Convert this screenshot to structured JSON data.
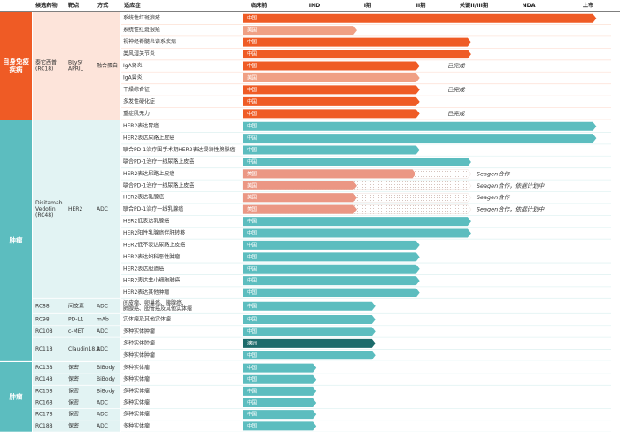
{
  "header": {
    "columns": [
      "候选药物",
      "靶点",
      "方式",
      "适应症"
    ],
    "stages": [
      "临床前",
      "IND",
      "I期",
      "II期",
      "关键II/III期",
      "NDA",
      "上市"
    ]
  },
  "sections": [
    {
      "label": [
        "自身免疫",
        "疾病"
      ],
      "color": "#ef5b25",
      "tint": "#fde4da",
      "groups": [
        {
          "drug": [
            "泰它西普",
            "(RC18)"
          ],
          "target": [
            "BLyS/",
            "APRIL"
          ],
          "modality": "融合蛋白",
          "rows": [
            {
              "indication": "系统性红斑狼疮",
              "region": "中国",
              "color": "#ef5b25",
              "progress": 96
            },
            {
              "indication": "系统性红斑狼疮",
              "region": "美国",
              "color": "#f0a084",
              "progress": 31
            },
            {
              "indication": "视神经脊髓炎谱系疾病",
              "region": "中国",
              "color": "#ef5b25",
              "progress": 62
            },
            {
              "indication": "类风湿关节炎",
              "region": "中国",
              "color": "#ef5b25",
              "progress": 62
            },
            {
              "indication": "IgA肾炎",
              "region": "中国",
              "color": "#ef5b25",
              "progress": 48,
              "note": "已完成"
            },
            {
              "indication": "IgA肾炎",
              "region": "美国",
              "color": "#f0a084",
              "progress": 48
            },
            {
              "indication": "干燥综合征",
              "region": "中国",
              "color": "#ef5b25",
              "progress": 48,
              "note": "已完成"
            },
            {
              "indication": "多发性硬化症",
              "region": "中国",
              "color": "#ef5b25",
              "progress": 48
            },
            {
              "indication": "重症肌无力",
              "region": "中国",
              "color": "#ef5b25",
              "progress": 48,
              "note": "已完成"
            }
          ]
        }
      ]
    },
    {
      "label": [
        "肿瘤"
      ],
      "color": "#5cbdbf",
      "tint": "#e2f3f3",
      "groups": [
        {
          "drug": [
            "Disitamab",
            "Vedotin",
            "(RC48)"
          ],
          "target": [
            "HER2"
          ],
          "modality": "ADC",
          "rows": [
            {
              "indication": "HER2表达胃癌",
              "region": "中国",
              "color": "#5cbdbf",
              "progress": 96
            },
            {
              "indication": "HER2表达尿路上皮癌",
              "region": "中国",
              "color": "#5cbdbf",
              "progress": 96
            },
            {
              "indication": "联合PD-1治疗围手术期HER2表达浸润性膀胱癌",
              "region": "中国",
              "color": "#5cbdbf",
              "progress": 48
            },
            {
              "indication": "联合PD-1治疗一线尿路上皮癌",
              "region": "中国",
              "color": "#5cbdbf",
              "progress": 62
            },
            {
              "indication": "HER2表达尿路上皮癌",
              "region": "美国",
              "color": "#eb9784",
              "progress": 47,
              "planned": 62,
              "note": "Seagen合作"
            },
            {
              "indication": "联合PD-1治疗一线尿路上皮癌",
              "region": "美国",
              "color": "#eb9784",
              "progress": 31,
              "planned": 62,
              "note": "Seagen合作，依据计划中"
            },
            {
              "indication": "HER2表达乳腺癌",
              "region": "美国",
              "color": "#eb9784",
              "progress": 31,
              "planned": 62,
              "note": "Seagen合作"
            },
            {
              "indication": "联合PD-1治疗一线乳腺癌",
              "region": "美国",
              "color": "#eb9784",
              "progress": 31,
              "planned": 62,
              "note": "Seagen合作，依据计划中"
            },
            {
              "indication": "HER2低表达乳腺癌",
              "region": "中国",
              "color": "#5cbdbf",
              "progress": 62
            },
            {
              "indication": "HER2阳性乳腺癌伴肝转移",
              "region": "中国",
              "color": "#5cbdbf",
              "progress": 62
            },
            {
              "indication": "HER2低不表达尿路上皮癌",
              "region": "中国",
              "color": "#5cbdbf",
              "progress": 48
            },
            {
              "indication": "HER2表达妇科恶性肿瘤",
              "region": "中国",
              "color": "#5cbdbf",
              "progress": 48
            },
            {
              "indication": "HER2表达胆道癌",
              "region": "中国",
              "color": "#5cbdbf",
              "progress": 48
            },
            {
              "indication": "HER2表达非小细胞肺癌",
              "region": "中国",
              "color": "#5cbdbf",
              "progress": 48
            },
            {
              "indication": "HER2表达其他肿瘤",
              "region": "中国",
              "color": "#5cbdbf",
              "progress": 48
            }
          ]
        },
        {
          "drug": [
            "RC88"
          ],
          "target": [
            "间皮素"
          ],
          "modality": "ADC",
          "rows": [
            {
              "indication": [
                "间皮瘤、卵巢癌、胰腺癌、",
                "肺腺癌、胆管癌及其他实体瘤"
              ],
              "region": "中国",
              "color": "#5cbdbf",
              "progress": 36
            }
          ]
        },
        {
          "drug": [
            "RC98"
          ],
          "target": [
            "PD-L1"
          ],
          "modality": "mAb",
          "rows": [
            {
              "indication": "实体瘤及其他实体瘤",
              "region": "中国",
              "color": "#5cbdbf",
              "progress": 36
            }
          ]
        },
        {
          "drug": [
            "RC108"
          ],
          "target": [
            "c-MET"
          ],
          "modality": "ADC",
          "rows": [
            {
              "indication": "多种实体肿瘤",
              "region": "中国",
              "color": "#5cbdbf",
              "progress": 36
            }
          ]
        },
        {
          "drug": [
            "RC118"
          ],
          "target": [
            "Claudin18.2"
          ],
          "modality": "ADC",
          "rows": [
            {
              "indication": "多种实体肿瘤",
              "region": "澳洲",
              "color": "#1b6b6b",
              "progress": 36
            },
            {
              "indication": "多种实体肿瘤",
              "region": "中国",
              "color": "#5cbdbf",
              "progress": 36
            }
          ]
        }
      ]
    },
    {
      "label": [
        "肿瘤"
      ],
      "color": "#5cbdbf",
      "tint": "#e2f3f3",
      "groups": [
        {
          "drug": [
            "RC138"
          ],
          "target": [
            "保密"
          ],
          "modality": "BiBody",
          "rows": [
            {
              "indication": "多种实体瘤",
              "region": "中国",
              "color": "#5cbdbf",
              "progress": 20
            }
          ]
        },
        {
          "drug": [
            "RC148"
          ],
          "target": [
            "保密"
          ],
          "modality": "BiBody",
          "rows": [
            {
              "indication": "多种实体瘤",
              "region": "中国",
              "color": "#5cbdbf",
              "progress": 20
            }
          ]
        },
        {
          "drug": [
            "RC158"
          ],
          "target": [
            "保密"
          ],
          "modality": "BiBody",
          "rows": [
            {
              "indication": "多种实体瘤",
              "region": "中国",
              "color": "#5cbdbf",
              "progress": 20
            }
          ]
        },
        {
          "drug": [
            "RC168"
          ],
          "target": [
            "保密"
          ],
          "modality": "ADC",
          "rows": [
            {
              "indication": "多种实体瘤",
              "region": "中国",
              "color": "#5cbdbf",
              "progress": 20
            }
          ]
        },
        {
          "drug": [
            "RC178"
          ],
          "target": [
            "保密"
          ],
          "modality": "ADC",
          "rows": [
            {
              "indication": "多种实体瘤",
              "region": "中国",
              "color": "#5cbdbf",
              "progress": 20
            }
          ]
        },
        {
          "drug": [
            "RC188"
          ],
          "target": [
            "保密"
          ],
          "modality": "ADC",
          "rows": [
            {
              "indication": "多种实体瘤",
              "region": "中国",
              "color": "#5cbdbf",
              "progress": 20
            }
          ]
        }
      ]
    }
  ]
}
